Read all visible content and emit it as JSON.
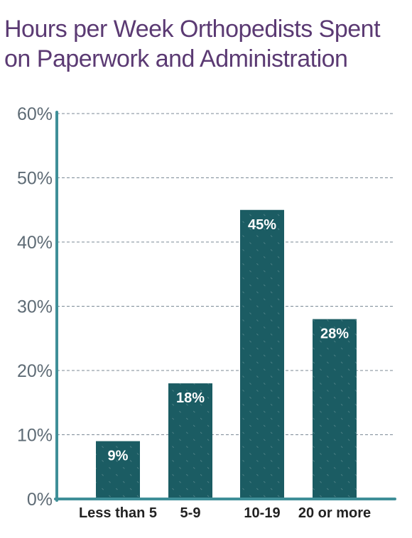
{
  "chart_data": {
    "type": "bar",
    "title": "Hours per Week Orthopedists Spent on Paperwork and Administration",
    "categories": [
      "Less than 5",
      "5-9",
      "10-19",
      "20 or more"
    ],
    "values": [
      9,
      18,
      45,
      28
    ],
    "data_labels": [
      "9%",
      "18%",
      "45%",
      "28%"
    ],
    "yticks": [
      0,
      10,
      20,
      30,
      40,
      50,
      60
    ],
    "ytick_labels": [
      "0%",
      "10%",
      "20%",
      "30%",
      "40%",
      "50%",
      "60%"
    ],
    "ylim": [
      0,
      60
    ],
    "xlabel": "",
    "ylabel": "",
    "grid": true,
    "legend": "none",
    "colors": {
      "bar": "#1b5c63",
      "axis": "#3f8f98",
      "grid": "#7b8a96",
      "title": "#5b3a73"
    }
  }
}
